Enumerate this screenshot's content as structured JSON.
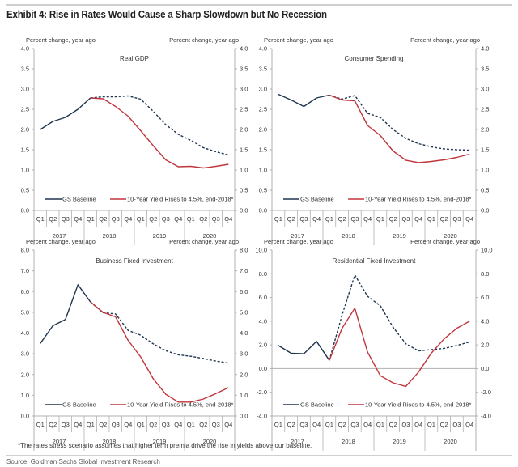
{
  "page": {
    "title": "Exhibit 4: Rise in Rates Would Cause a Sharp Slowdown but No Recession",
    "footnote": "*The rates stress scenario assumes that higher term premia drive the rise in yields above our baseline.",
    "source": "Source: Goldman Sachs Global Investment Research"
  },
  "colors": {
    "baseline": "#1f3550",
    "stress": "#c0363d",
    "axis": "#b0b0b0",
    "text": "#333333"
  },
  "chart_data": [
    {
      "type": "line",
      "title": "Real GDP",
      "ylabel_left": "Percent change, year ago",
      "ylabel_right": "Percent change, year ago",
      "ylim": [
        0,
        4
      ],
      "yticks": [
        "0.0",
        "0.5",
        "1.0",
        "1.5",
        "2.0",
        "2.5",
        "3.0",
        "3.5",
        "4.0"
      ],
      "ytick_values": [
        0,
        0.5,
        1,
        1.5,
        2,
        2.5,
        3,
        3.5,
        4
      ],
      "x_quarters": [
        "Q1",
        "Q2",
        "Q3",
        "Q4",
        "Q1",
        "Q2",
        "Q3",
        "Q4",
        "Q1",
        "Q2",
        "Q3",
        "Q4",
        "Q1",
        "Q2",
        "Q3",
        "Q4"
      ],
      "x_years": [
        "2017",
        "2018",
        "2019",
        "2020"
      ],
      "legend": [
        "GS Baseline",
        "10-Year Yield Rises to 4.5%, end-2018*"
      ],
      "legend_position": "bottom",
      "series": [
        {
          "name": "GS Baseline",
          "style": "solid",
          "start": 0,
          "values": [
            2.0,
            2.2,
            2.3,
            2.5,
            2.78
          ]
        },
        {
          "name": "GS Baseline (forecast)",
          "style": "dashed",
          "start": 4,
          "values": [
            2.78,
            2.81,
            2.81,
            2.83,
            2.75,
            2.45,
            2.12,
            1.88,
            1.73,
            1.55,
            1.45,
            1.37
          ]
        },
        {
          "name": "10-Year Yield Rises to 4.5%, end-2018*",
          "style": "solid",
          "start": 4,
          "values": [
            2.78,
            2.76,
            2.57,
            2.33,
            1.97,
            1.6,
            1.25,
            1.08,
            1.09,
            1.05,
            1.09,
            1.14
          ]
        }
      ]
    },
    {
      "type": "line",
      "title": "Consumer Spending",
      "ylabel_left": "Percent change, year ago",
      "ylabel_right": "Percent change, year ago",
      "ylim": [
        0,
        4
      ],
      "yticks": [
        "0.0",
        "0.5",
        "1.0",
        "1.5",
        "2.0",
        "2.5",
        "3.0",
        "3.5",
        "4.0"
      ],
      "ytick_values": [
        0,
        0.5,
        1,
        1.5,
        2,
        2.5,
        3,
        3.5,
        4
      ],
      "x_quarters": [
        "Q1",
        "Q2",
        "Q3",
        "Q4",
        "Q1",
        "Q2",
        "Q3",
        "Q4",
        "Q1",
        "Q2",
        "Q3",
        "Q4",
        "Q1",
        "Q2",
        "Q3",
        "Q4"
      ],
      "x_years": [
        "2017",
        "2018",
        "2019",
        "2020"
      ],
      "legend": [
        "GS Baseline",
        "10-Year Yield Rises to 4.5%, end-2018*"
      ],
      "legend_position": "bottom",
      "series": [
        {
          "name": "GS Baseline",
          "style": "solid",
          "start": 0,
          "values": [
            2.87,
            2.73,
            2.57,
            2.78,
            2.85
          ]
        },
        {
          "name": "GS Baseline (forecast)",
          "style": "dashed",
          "start": 4,
          "values": [
            2.85,
            2.75,
            2.84,
            2.4,
            2.3,
            2.0,
            1.78,
            1.65,
            1.57,
            1.52,
            1.5,
            1.49
          ]
        },
        {
          "name": "10-Year Yield Rises to 4.5%, end-2018*",
          "style": "solid",
          "start": 4,
          "values": [
            2.85,
            2.73,
            2.71,
            2.1,
            1.85,
            1.47,
            1.24,
            1.18,
            1.21,
            1.25,
            1.31,
            1.39
          ]
        }
      ]
    },
    {
      "type": "line",
      "title": "Business Fixed Investment",
      "ylabel_left": "Percent change, year ago",
      "ylabel_right": "Percent change, year ago",
      "ylim": [
        0,
        8
      ],
      "yticks": [
        "0.0",
        "1.0",
        "2.0",
        "3.0",
        "4.0",
        "5.0",
        "6.0",
        "7.0",
        "8.0"
      ],
      "ytick_values": [
        0,
        1,
        2,
        3,
        4,
        5,
        6,
        7,
        8
      ],
      "x_quarters": [
        "Q1",
        "Q2",
        "Q3",
        "Q4",
        "Q1",
        "Q2",
        "Q3",
        "Q4",
        "Q1",
        "Q2",
        "Q3",
        "Q4",
        "Q1",
        "Q2",
        "Q3",
        "Q4"
      ],
      "x_years": [
        "2017",
        "2018",
        "2019",
        "2020"
      ],
      "legend": [
        "GS Baseline",
        "10-Year Yield Rises to 4.5%, end-2018*"
      ],
      "legend_position": "bottom",
      "series": [
        {
          "name": "GS Baseline",
          "style": "solid",
          "start": 0,
          "values": [
            3.5,
            4.35,
            4.65,
            6.33,
            5.5
          ]
        },
        {
          "name": "GS Baseline (forecast)",
          "style": "dashed",
          "start": 4,
          "values": [
            5.5,
            4.98,
            4.92,
            4.13,
            3.9,
            3.48,
            3.15,
            2.95,
            2.88,
            2.77,
            2.65,
            2.55
          ]
        },
        {
          "name": "10-Year Yield Rises to 4.5%, end-2018*",
          "style": "solid",
          "start": 4,
          "values": [
            5.5,
            5.0,
            4.78,
            3.65,
            2.85,
            1.8,
            1.05,
            0.67,
            0.67,
            0.82,
            1.08,
            1.37
          ]
        }
      ]
    },
    {
      "type": "line",
      "title": "Residential Fixed Investment",
      "ylabel_left": "Percent change, year ago",
      "ylabel_right": "Percent change, year ago",
      "ylim": [
        -4,
        10
      ],
      "yticks": [
        "-4.0",
        "-2.0",
        "0.0",
        "2.0",
        "4.0",
        "6.0",
        "8.0",
        "10.0"
      ],
      "ytick_values": [
        -4,
        -2,
        0,
        2,
        4,
        6,
        8,
        10
      ],
      "x_quarters": [
        "Q1",
        "Q2",
        "Q3",
        "Q4",
        "Q1",
        "Q2",
        "Q3",
        "Q4",
        "Q1",
        "Q2",
        "Q3",
        "Q4",
        "Q1",
        "Q2",
        "Q3",
        "Q4"
      ],
      "x_years": [
        "2017",
        "2018",
        "2019",
        "2020"
      ],
      "legend": [
        "GS Baseline",
        "10-Year Yield Rises to 4.5%, end-2018*"
      ],
      "legend_position": "bottom",
      "series": [
        {
          "name": "GS Baseline",
          "style": "solid",
          "start": 0,
          "values": [
            1.95,
            1.3,
            1.25,
            2.3,
            0.7
          ]
        },
        {
          "name": "GS Baseline (forecast)",
          "style": "dashed",
          "start": 4,
          "values": [
            0.7,
            4.5,
            7.9,
            6.1,
            5.3,
            3.5,
            2.1,
            1.5,
            1.6,
            1.7,
            1.95,
            2.25
          ]
        },
        {
          "name": "10-Year Yield Rises to 4.5%, end-2018*",
          "style": "solid",
          "start": 4,
          "values": [
            0.7,
            3.4,
            5.1,
            1.4,
            -0.6,
            -1.2,
            -1.5,
            -0.3,
            1.3,
            2.5,
            3.4,
            4.0
          ]
        }
      ]
    }
  ]
}
